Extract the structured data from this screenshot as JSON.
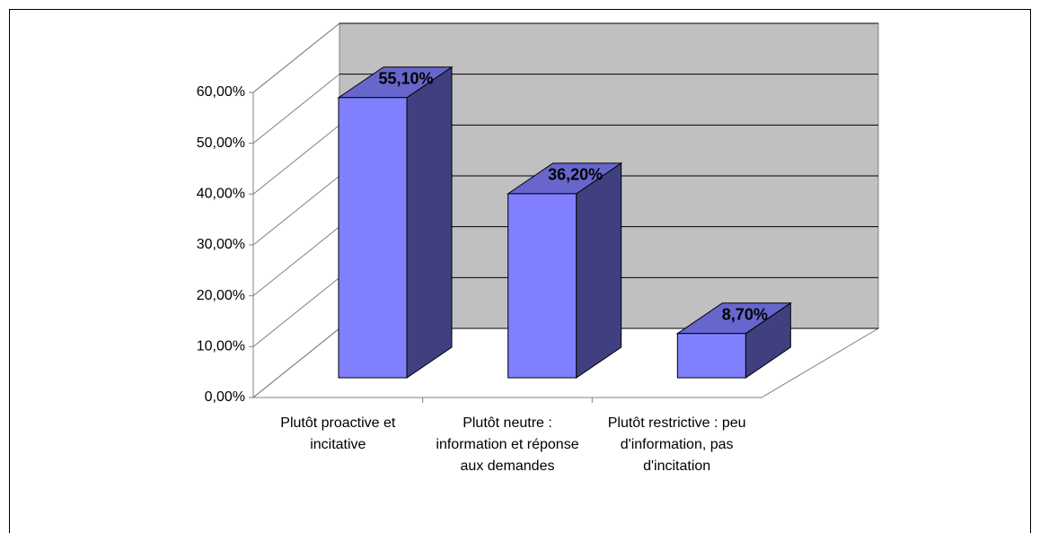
{
  "chart_data": {
    "type": "bar3d",
    "categories": [
      "Plutôt proactive et incitative",
      "Plutôt neutre : information et réponse aux demandes",
      "Plutôt restrictive : peu d'information, pas d'incitation"
    ],
    "values": [
      55.1,
      36.2,
      8.7
    ],
    "value_labels": [
      "55,10%",
      "36,20%",
      "8,70%"
    ],
    "color": "#8080ff",
    "ylim": [
      0,
      60
    ],
    "yticks": [
      {
        "value": 0,
        "label": "0,00%"
      },
      {
        "value": 10,
        "label": "10,00%"
      },
      {
        "value": 20,
        "label": "20,00%"
      },
      {
        "value": 30,
        "label": "30,00%"
      },
      {
        "value": 40,
        "label": "40,00%"
      },
      {
        "value": 50,
        "label": "50,00%"
      },
      {
        "value": 60,
        "label": "60,00%"
      }
    ],
    "grid": true
  }
}
